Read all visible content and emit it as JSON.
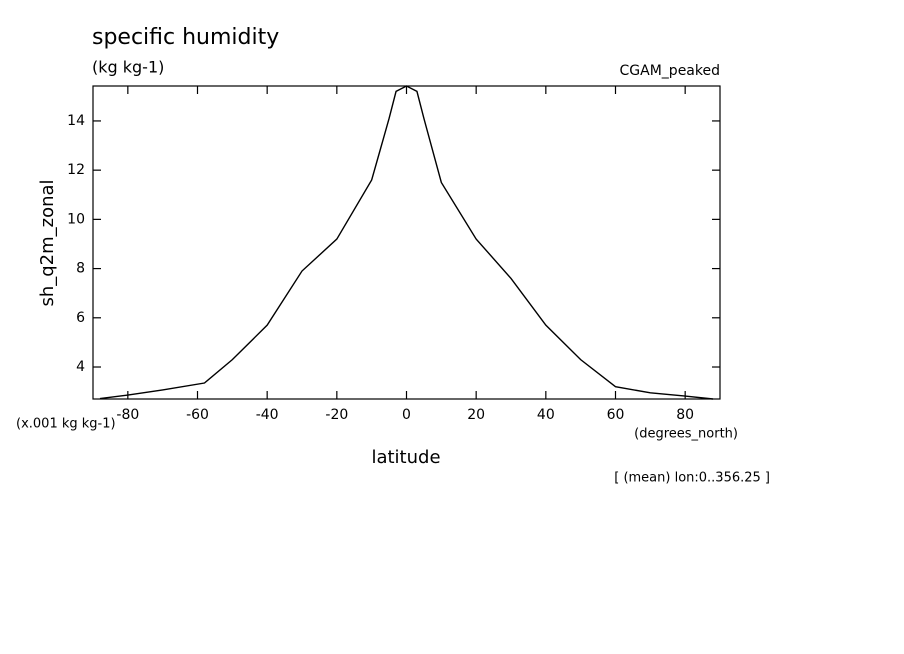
{
  "chart_data": {
    "type": "line",
    "title": "specific humidity",
    "units": "(kg kg-1)",
    "dataset": "CGAM_peaked",
    "y_label": "sh_q2m_zonal",
    "y_scale_label": "(x.001 kg kg-1)",
    "x_label": "latitude",
    "x_units": "(degrees_north)",
    "annotation": "[ (mean) lon:0..356.25 ]",
    "x": [
      -88,
      -80,
      -70,
      -58,
      -50,
      -40,
      -30,
      -20,
      -10,
      -5,
      -3,
      0,
      3,
      5,
      10,
      20,
      30,
      40,
      50,
      60,
      70,
      80,
      88
    ],
    "series": [
      {
        "name": "sh_q2m_zonal",
        "color": "#000000",
        "values": [
          2.72,
          2.86,
          3.07,
          3.35,
          4.3,
          5.7,
          7.9,
          9.2,
          11.6,
          14.1,
          15.2,
          15.42,
          15.2,
          14.1,
          11.5,
          9.2,
          7.6,
          5.7,
          4.3,
          3.2,
          2.95,
          2.82,
          2.7
        ]
      }
    ],
    "xlim": [
      -90,
      90
    ],
    "ylim": [
      2.7,
      15.42
    ],
    "xticks": [
      -80,
      -60,
      -40,
      -20,
      0,
      20,
      40,
      60,
      80
    ],
    "yticks": [
      4,
      6,
      8,
      10,
      12,
      14
    ]
  }
}
